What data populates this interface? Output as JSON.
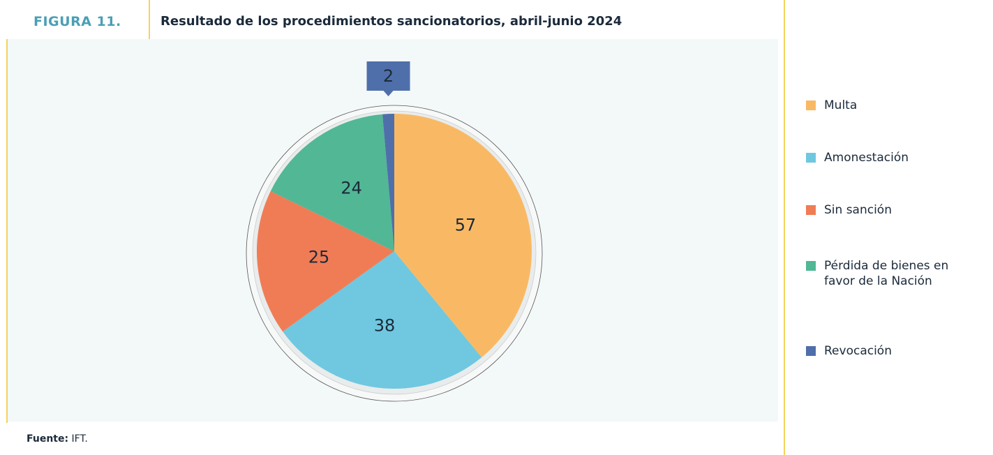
{
  "figure_label": "FIGURA 11.",
  "chart_data": {
    "type": "pie",
    "title": "Resultado de los procedimientos sancionatorios, abril-junio 2024",
    "categories": [
      "Multa",
      "Amonestación",
      "Sin sanción",
      "Pérdida de bienes en favor de la Nación",
      "Revocación"
    ],
    "values": [
      57,
      38,
      25,
      24,
      2
    ],
    "colors": [
      "#f9b964",
      "#6fc8df",
      "#f07c56",
      "#52b794",
      "#4f6faa"
    ],
    "legend": "right"
  },
  "source": {
    "label": "Fuente:",
    "text": "IFT."
  }
}
